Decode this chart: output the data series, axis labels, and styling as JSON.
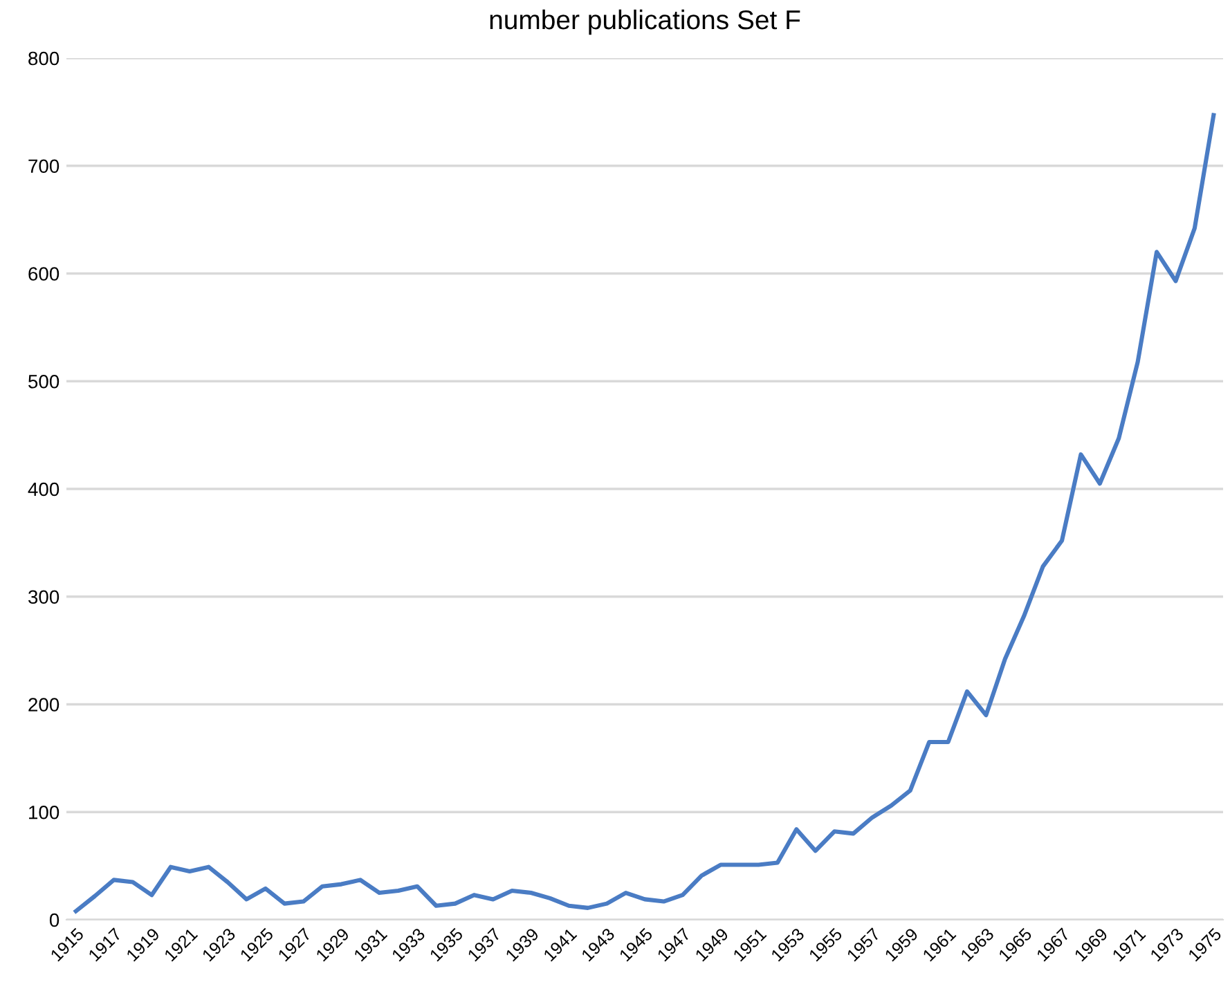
{
  "chart_data": {
    "type": "line",
    "title": "number publications Set F",
    "categories": [
      "1915",
      null,
      "1917",
      null,
      "1919",
      null,
      "1921",
      null,
      "1923",
      null,
      "1925",
      null,
      "1927",
      null,
      "1929",
      null,
      "1931",
      null,
      "1933",
      null,
      "1935",
      null,
      "1937",
      null,
      "1939",
      null,
      "1941",
      null,
      "1943",
      null,
      "1945",
      null,
      "1947",
      null,
      "1949",
      null,
      "1951",
      null,
      "1953",
      null,
      "1955",
      null,
      "1957",
      null,
      "1959",
      null,
      "1961",
      null,
      "1963",
      null,
      "1965",
      null,
      "1967",
      null,
      "1969",
      null,
      "1971",
      null,
      "1973",
      null,
      "1975"
    ],
    "series": [
      {
        "color": "#4a7cc4",
        "values": [
          8,
          22,
          37,
          35,
          23,
          49,
          45,
          49,
          35,
          19,
          29,
          15,
          17,
          31,
          33,
          37,
          25,
          27,
          31,
          13,
          15,
          23,
          19,
          27,
          25,
          20,
          13,
          11,
          15,
          25,
          19,
          17,
          23,
          41,
          51,
          51,
          51,
          53,
          84,
          64,
          82,
          80,
          95,
          106,
          120,
          165,
          165,
          212,
          190,
          242,
          282,
          328,
          352,
          432,
          405,
          447,
          518,
          620,
          593,
          642,
          747
        ]
      }
    ],
    "ylim": [
      0,
      800
    ],
    "yticks": [
      0,
      100,
      200,
      300,
      400,
      500,
      600,
      700,
      800
    ],
    "grid": "y",
    "legend": false
  }
}
